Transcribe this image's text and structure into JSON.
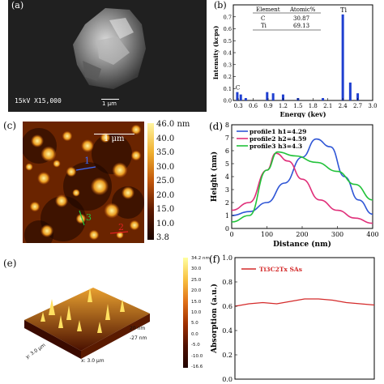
{
  "panel_b": {
    "label": "(b)",
    "table_headers": [
      "Element",
      "Atomic%"
    ],
    "table_rows": [
      [
        "C",
        "30.87"
      ],
      [
        "Ti",
        "69.13"
      ]
    ],
    "peak_labels": [
      "Ti",
      "C"
    ],
    "chart_data": {
      "type": "bar",
      "title": "",
      "xlabel": "Energy (kev)",
      "ylabel": "Intensity (kcps)",
      "xlim": [
        0.2,
        3.0
      ],
      "ylim": [
        0,
        0.8
      ],
      "xticks": [
        "0.3",
        "0.6",
        "0.9",
        "1.2",
        "1.5",
        "1.8",
        "2.1",
        "2.4",
        "2.7",
        "3.0"
      ],
      "yticks": [
        "0.0",
        "0.1",
        "0.2",
        "0.3",
        "0.4",
        "0.5",
        "0.6",
        "0.7"
      ],
      "x": [
        0.28,
        0.35,
        0.45,
        0.88,
        1.0,
        1.2,
        1.5,
        2.0,
        2.4,
        2.55,
        2.7
      ],
      "values": [
        0.07,
        0.05,
        0.02,
        0.07,
        0.06,
        0.05,
        0.02,
        0.02,
        0.72,
        0.15,
        0.06
      ]
    }
  },
  "panel_a": {
    "label": "(a)",
    "caption": "15kV  X15,000",
    "scale": "1 μm"
  },
  "panel_c": {
    "label": "(c)",
    "scale": "1 μm",
    "markers": [
      "1",
      "2",
      "3"
    ],
    "colorbar": [
      "46.0 nm",
      "40.0",
      "35.0",
      "30.0",
      "25.0",
      "20.0",
      "15.0",
      "10.0",
      "3.8"
    ],
    "colors": {
      "high": "#fff5a0",
      "mid": "#c0550a",
      "low": "#1a0600"
    }
  },
  "panel_d": {
    "label": "(d)",
    "chart_data": {
      "type": "line",
      "title": "",
      "xlabel": "Distance (nm)",
      "ylabel": "Height (nm)",
      "xlim": [
        0,
        400
      ],
      "ylim": [
        0,
        8
      ],
      "xticks": [
        "0",
        "100",
        "200",
        "300",
        "400"
      ],
      "yticks": [
        "0",
        "1",
        "2",
        "3",
        "4",
        "5",
        "6",
        "7",
        "8"
      ],
      "legend": "top-left",
      "series": [
        {
          "name": "profile1 h1=4.29",
          "color": "#2f56d6",
          "x": [
            0,
            50,
            100,
            150,
            200,
            240,
            280,
            320,
            360,
            400
          ],
          "values": [
            1.0,
            1.3,
            2.0,
            3.5,
            5.5,
            6.9,
            6.3,
            4.0,
            2.2,
            1.1
          ]
        },
        {
          "name": "profile2 h2=4.59",
          "color": "#e0307a",
          "x": [
            0,
            50,
            100,
            125,
            160,
            200,
            250,
            300,
            350,
            400
          ],
          "values": [
            1.4,
            2.0,
            4.5,
            5.8,
            5.2,
            3.8,
            2.2,
            1.4,
            0.8,
            0.4
          ]
        },
        {
          "name": "profile3 h3=4.3",
          "color": "#22c23a",
          "x": [
            0,
            50,
            100,
            130,
            180,
            240,
            300,
            350,
            400
          ],
          "values": [
            0.5,
            1.0,
            4.5,
            5.9,
            5.6,
            5.1,
            4.4,
            3.4,
            2.2
          ]
        }
      ]
    }
  },
  "panel_e": {
    "label": "(e)",
    "axis_labels": [
      "20 nm",
      "-27 nm",
      "x: 3.0 μm",
      "y: 3.0 μm"
    ],
    "colorbar": [
      "34.2 nm",
      "30.0",
      "25.0",
      "20.0",
      "15.0",
      "10.0",
      "5.0",
      "0.0",
      "-5.0",
      "-10.0",
      "-16.6"
    ]
  },
  "panel_f": {
    "label": "(f)",
    "chart_data": {
      "type": "line",
      "title": "",
      "xlabel": "",
      "ylabel": "Absorption (a.u.)",
      "ylim": [
        0,
        1.0
      ],
      "yticks": [
        "0.0",
        "0.2",
        "0.4",
        "0.6",
        "0.8",
        "1.0"
      ],
      "legend": "top-left",
      "series": [
        {
          "name": "Ti3C2Tx SAs",
          "color": "#d42a2a",
          "x": [
            0,
            0.1,
            0.2,
            0.3,
            0.4,
            0.5,
            0.6,
            0.7,
            0.8,
            0.9,
            1.0
          ],
          "values": [
            0.6,
            0.62,
            0.63,
            0.62,
            0.64,
            0.66,
            0.66,
            0.65,
            0.63,
            0.62,
            0.61
          ]
        }
      ]
    }
  }
}
